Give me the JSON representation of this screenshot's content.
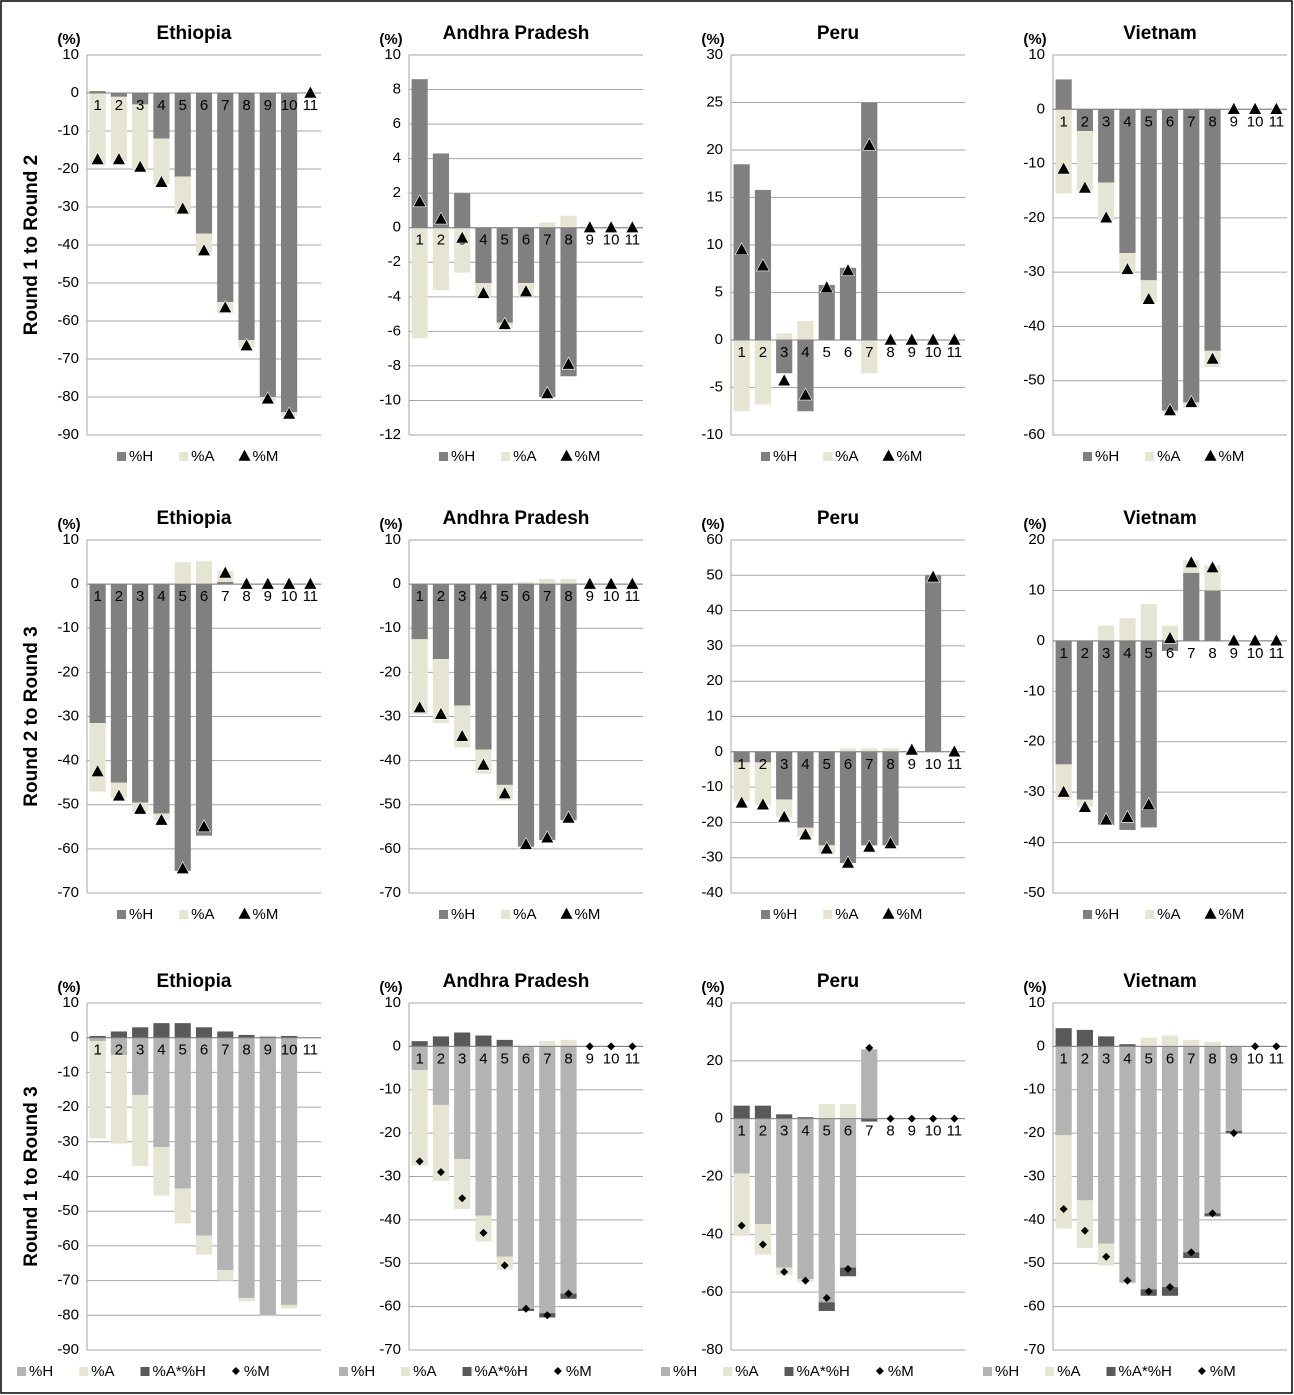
{
  "chart_data": [
    {
      "type": "bar",
      "title": "Ethiopia",
      "unit": "(%)",
      "ylabel": "Round 1 to Round 2",
      "ylim": [
        -90,
        10
      ],
      "yticks": [
        -90,
        -80,
        -70,
        -60,
        -50,
        -40,
        -30,
        -20,
        -10,
        0,
        10
      ],
      "grid": true,
      "categories": [
        "1",
        "2",
        "3",
        "4",
        "5",
        "6",
        "7",
        "8",
        "9",
        "10",
        "11"
      ],
      "series": [
        {
          "name": "%H",
          "color": "#808080",
          "values": [
            0.5,
            -1,
            -3,
            -12,
            -22,
            -37,
            -55,
            -65,
            -80,
            -84,
            0
          ]
        },
        {
          "name": "%A",
          "color": "#e6e5d3",
          "values": [
            -19,
            -17,
            -17,
            -12,
            -10,
            -5,
            -3,
            -2,
            -1,
            -1,
            0
          ]
        },
        {
          "name": "%M",
          "color": "#000000",
          "marker": "triangle",
          "values": [
            -17.5,
            -17.5,
            -19.5,
            -23.5,
            -30.5,
            -41.5,
            -56.5,
            -66.5,
            -80.5,
            -84.5,
            0
          ]
        }
      ]
    },
    {
      "type": "bar",
      "title": "Andhra Pradesh",
      "unit": "(%)",
      "ylim": [
        -12,
        10
      ],
      "yticks": [
        -12,
        -10,
        -8,
        -6,
        -4,
        -2,
        0,
        2,
        4,
        6,
        8,
        10
      ],
      "grid": true,
      "categories": [
        "1",
        "2",
        "3",
        "4",
        "5",
        "6",
        "7",
        "8",
        "9",
        "10",
        "11"
      ],
      "series": [
        {
          "name": "%H",
          "color": "#808080",
          "values": [
            8.6,
            4.3,
            2.0,
            -3.2,
            -5.5,
            -3.2,
            -9.8,
            -8.6,
            0,
            0,
            0
          ]
        },
        {
          "name": "%A",
          "color": "#e6e5d3",
          "values": [
            -6.4,
            -3.6,
            -2.6,
            -0.8,
            -0.3,
            -0.7,
            0.3,
            0.7,
            0,
            0,
            0
          ]
        },
        {
          "name": "%M",
          "color": "#000000",
          "marker": "triangle",
          "values": [
            1.5,
            0.5,
            -0.6,
            -3.8,
            -5.6,
            -3.7,
            -9.6,
            -7.9,
            0,
            0,
            0
          ]
        }
      ]
    },
    {
      "type": "bar",
      "title": "Peru",
      "unit": "(%)",
      "ylim": [
        -10,
        30
      ],
      "yticks": [
        -10,
        -5,
        0,
        5,
        10,
        15,
        20,
        25,
        30
      ],
      "grid": true,
      "categories": [
        "1",
        "2",
        "3",
        "4",
        "5",
        "6",
        "7",
        "8",
        "9",
        "10",
        "11"
      ],
      "series": [
        {
          "name": "%H",
          "color": "#808080",
          "values": [
            18.5,
            15.8,
            -3.5,
            -7.5,
            5.8,
            7.6,
            25,
            0,
            0,
            0,
            0
          ]
        },
        {
          "name": "%A",
          "color": "#e6e5d3",
          "values": [
            -7.5,
            -6.8,
            0.7,
            2.0,
            0,
            0,
            -3.5,
            0,
            0,
            0,
            0
          ]
        },
        {
          "name": "%M",
          "color": "#000000",
          "marker": "triangle",
          "values": [
            9.5,
            7.8,
            -4.3,
            -5.8,
            5.5,
            7.3,
            20.5,
            0,
            0,
            0,
            0
          ]
        }
      ]
    },
    {
      "type": "bar",
      "title": "Vietnam",
      "unit": "(%)",
      "ylim": [
        -60,
        10
      ],
      "yticks": [
        -60,
        -50,
        -40,
        -30,
        -20,
        -10,
        0,
        10
      ],
      "grid": true,
      "categories": [
        "1",
        "2",
        "3",
        "4",
        "5",
        "6",
        "7",
        "8",
        "9",
        "10",
        "11"
      ],
      "series": [
        {
          "name": "%H",
          "color": "#808080",
          "values": [
            5.5,
            -4,
            -13.5,
            -26.5,
            -31.5,
            -55.5,
            -54,
            -44.5,
            0,
            0,
            0
          ]
        },
        {
          "name": "%A",
          "color": "#e6e5d3",
          "values": [
            -15.5,
            -11,
            -7,
            -3.5,
            -4,
            -0.5,
            -1,
            -3,
            0,
            0,
            0
          ]
        },
        {
          "name": "%M",
          "color": "#000000",
          "marker": "triangle",
          "values": [
            -11,
            -14.5,
            -20,
            -29.5,
            -35,
            -55.5,
            -54,
            -46,
            0,
            0,
            0
          ]
        }
      ]
    },
    {
      "type": "bar",
      "title": "Ethiopia",
      "unit": "(%)",
      "ylabel": "Round 2 to Round 3",
      "ylim": [
        -70,
        10
      ],
      "yticks": [
        -70,
        -60,
        -50,
        -40,
        -30,
        -20,
        -10,
        0,
        10
      ],
      "grid": true,
      "categories": [
        "1",
        "2",
        "3",
        "4",
        "5",
        "6",
        "7",
        "8",
        "9",
        "10",
        "11"
      ],
      "series": [
        {
          "name": "%H",
          "color": "#808080",
          "values": [
            -31.5,
            -45,
            -49.5,
            -52,
            -65,
            -57,
            0.5,
            0,
            0,
            0,
            0
          ]
        },
        {
          "name": "%A",
          "color": "#e6e5d3",
          "values": [
            -15.5,
            -3.5,
            -2,
            -1.5,
            5,
            5.2,
            2.5,
            0,
            0,
            0,
            0
          ]
        },
        {
          "name": "%M",
          "color": "#000000",
          "marker": "triangle",
          "values": [
            -42.5,
            -48,
            -51,
            -53.5,
            -64.5,
            -55,
            2.5,
            0,
            0,
            0,
            0
          ]
        }
      ]
    },
    {
      "type": "bar",
      "title": "Andhra Pradesh",
      "unit": "(%)",
      "ylim": [
        -70,
        10
      ],
      "yticks": [
        -70,
        -60,
        -50,
        -40,
        -30,
        -20,
        -10,
        0,
        10
      ],
      "grid": true,
      "categories": [
        "1",
        "2",
        "3",
        "4",
        "5",
        "6",
        "7",
        "8",
        "9",
        "10",
        "11"
      ],
      "series": [
        {
          "name": "%H",
          "color": "#808080",
          "values": [
            -12.5,
            -17,
            -27.5,
            -37.5,
            -45.5,
            -59.5,
            -58,
            -53.5,
            0,
            0,
            0
          ]
        },
        {
          "name": "%A",
          "color": "#e6e5d3",
          "values": [
            -17,
            -14.5,
            -9.5,
            -5.5,
            -3.5,
            0.5,
            1.2,
            1.2,
            0,
            0,
            0
          ]
        },
        {
          "name": "%M",
          "color": "#000000",
          "marker": "triangle",
          "values": [
            -28,
            -29.5,
            -34.5,
            -41,
            -47.5,
            -59,
            -57.5,
            -53,
            0,
            0,
            0
          ]
        }
      ]
    },
    {
      "type": "bar",
      "title": "Peru",
      "unit": "(%)",
      "ylim": [
        -40,
        60
      ],
      "yticks": [
        -40,
        -30,
        -20,
        -10,
        0,
        10,
        20,
        30,
        40,
        50,
        60
      ],
      "grid": true,
      "categories": [
        "1",
        "2",
        "3",
        "4",
        "5",
        "6",
        "7",
        "8",
        "9",
        "10",
        "11"
      ],
      "series": [
        {
          "name": "%H",
          "color": "#808080",
          "values": [
            -3,
            -3,
            -13.5,
            -21.5,
            -26.5,
            -31.5,
            -26.5,
            -26.5,
            0,
            50,
            0
          ]
        },
        {
          "name": "%A",
          "color": "#e6e5d3",
          "values": [
            -11,
            -12,
            -5,
            -2.5,
            -2.5,
            1,
            1,
            1,
            0,
            0,
            0
          ]
        },
        {
          "name": "%M",
          "color": "#000000",
          "marker": "triangle",
          "values": [
            -14.5,
            -15,
            -18.5,
            -23.5,
            -27.5,
            -31.5,
            -27,
            -26,
            0.5,
            49.5,
            0
          ]
        }
      ]
    },
    {
      "type": "bar",
      "title": "Vietnam",
      "unit": "(%)",
      "ylim": [
        -50,
        20
      ],
      "yticks": [
        -50,
        -40,
        -30,
        -20,
        -10,
        0,
        10,
        20
      ],
      "grid": true,
      "categories": [
        "1",
        "2",
        "3",
        "4",
        "5",
        "6",
        "7",
        "8",
        "9",
        "10",
        "11"
      ],
      "series": [
        {
          "name": "%H",
          "color": "#808080",
          "values": [
            -24.5,
            -31.5,
            -36.5,
            -37.5,
            -37,
            -2,
            13.5,
            10,
            0,
            0,
            0
          ]
        },
        {
          "name": "%A",
          "color": "#e6e5d3",
          "values": [
            -7,
            -1.5,
            3,
            4.5,
            7.3,
            3,
            2.5,
            5,
            0,
            0,
            0
          ]
        },
        {
          "name": "%M",
          "color": "#000000",
          "marker": "triangle",
          "values": [
            -30,
            -33,
            -35.5,
            -35,
            -32.5,
            0.5,
            15.5,
            14.5,
            0,
            0,
            0
          ]
        }
      ]
    },
    {
      "type": "bar",
      "title": "Ethiopia",
      "unit": "(%)",
      "ylabel": "Round 1 to Round 3",
      "ylim": [
        -90,
        10
      ],
      "yticks": [
        -90,
        -80,
        -70,
        -60,
        -50,
        -40,
        -30,
        -20,
        -10,
        0,
        10
      ],
      "grid": true,
      "categories": [
        "1",
        "2",
        "3",
        "4",
        "5",
        "6",
        "7",
        "8",
        "9",
        "10",
        "11"
      ],
      "series": [
        {
          "name": "%H",
          "color": "#b3b3b3",
          "values": [
            -1,
            -5,
            -16.5,
            -31.5,
            -43.5,
            -57,
            -67,
            -75,
            -80,
            -77,
            0
          ]
        },
        {
          "name": "%A",
          "color": "#e6e5d3",
          "values": [
            -28,
            -25.5,
            -20.5,
            -14,
            -10,
            -5.5,
            -3,
            -1,
            -0.3,
            -1,
            0
          ]
        },
        {
          "name": "%A*%H",
          "color": "#595959",
          "values": [
            0.5,
            1.8,
            3,
            4.2,
            4.2,
            3,
            1.8,
            0.8,
            0.3,
            0.5,
            0
          ]
        },
        {
          "name": "%M",
          "color": "#000000",
          "marker": "diamond",
          "values": [
            null,
            null,
            null,
            null,
            null,
            null,
            null,
            null,
            null,
            null,
            null
          ]
        }
      ]
    },
    {
      "type": "bar",
      "title": "Andhra Pradesh",
      "unit": "(%)",
      "ylim": [
        -70,
        10
      ],
      "yticks": [
        -70,
        -60,
        -50,
        -40,
        -30,
        -20,
        -10,
        0,
        10
      ],
      "grid": true,
      "categories": [
        "1",
        "2",
        "3",
        "4",
        "5",
        "6",
        "7",
        "8",
        "9",
        "10",
        "11"
      ],
      "series": [
        {
          "name": "%H",
          "color": "#b3b3b3",
          "values": [
            -5.5,
            -13.5,
            -26,
            -39,
            -48.5,
            -60.5,
            -61.5,
            -57,
            0,
            0,
            0
          ]
        },
        {
          "name": "%A",
          "color": "#e6e5d3",
          "values": [
            -22,
            -17.5,
            -11.5,
            -6,
            -3,
            0,
            1.2,
            1.5,
            0,
            0,
            0
          ]
        },
        {
          "name": "%A*%H",
          "color": "#595959",
          "values": [
            1.2,
            2.3,
            3.2,
            2.5,
            1.5,
            -0.5,
            -1,
            -1.2,
            0,
            0,
            0
          ]
        },
        {
          "name": "%M",
          "color": "#000000",
          "marker": "diamond",
          "values": [
            -26.5,
            -29,
            -35,
            -43,
            -50.5,
            -60.5,
            -62,
            -57,
            0,
            0,
            0
          ]
        }
      ]
    },
    {
      "type": "bar",
      "title": "Peru",
      "unit": "(%)",
      "ylim": [
        -80,
        40
      ],
      "yticks": [
        -80,
        -60,
        -40,
        -20,
        0,
        20,
        40
      ],
      "grid": true,
      "categories": [
        "1",
        "2",
        "3",
        "4",
        "5",
        "6",
        "7",
        "8",
        "9",
        "10",
        "11"
      ],
      "series": [
        {
          "name": "%H",
          "color": "#b3b3b3",
          "values": [
            -19,
            -36.5,
            -51.5,
            -55.5,
            -63.5,
            -51.5,
            24,
            0,
            0,
            0,
            0
          ]
        },
        {
          "name": "%A",
          "color": "#e6e5d3",
          "values": [
            -21.5,
            -10.5,
            -2.5,
            -1,
            5,
            5,
            0,
            0,
            0,
            0,
            0
          ]
        },
        {
          "name": "%A*%H",
          "color": "#595959",
          "values": [
            4.5,
            4.5,
            1.5,
            0.5,
            -3,
            -3,
            -1,
            0,
            0,
            0,
            0
          ]
        },
        {
          "name": "%M",
          "color": "#000000",
          "marker": "diamond",
          "values": [
            -37,
            -43.5,
            -53,
            -56,
            -62,
            -52,
            24.5,
            0,
            0,
            0,
            0
          ]
        }
      ]
    },
    {
      "type": "bar",
      "title": "Vietnam",
      "unit": "(%)",
      "ylim": [
        -70,
        10
      ],
      "yticks": [
        -70,
        -60,
        -50,
        -40,
        -30,
        -20,
        -10,
        0,
        10
      ],
      "grid": true,
      "categories": [
        "1",
        "2",
        "3",
        "4",
        "5",
        "6",
        "7",
        "8",
        "9",
        "10",
        "11"
      ],
      "series": [
        {
          "name": "%H",
          "color": "#b3b3b3",
          "values": [
            -20.5,
            -35.5,
            -45.5,
            -54.5,
            -56,
            -55.5,
            -47.5,
            -38.5,
            -19.5,
            0,
            0
          ]
        },
        {
          "name": "%A",
          "color": "#e6e5d3",
          "values": [
            -21.5,
            -11,
            -5,
            0,
            2,
            2.5,
            1.5,
            1,
            0,
            0,
            0
          ]
        },
        {
          "name": "%A*%H",
          "color": "#595959",
          "values": [
            4.2,
            3.8,
            2.3,
            0.5,
            -1.5,
            -2,
            -1.3,
            -0.7,
            -0.5,
            0,
            0
          ]
        },
        {
          "name": "%M",
          "color": "#000000",
          "marker": "diamond",
          "values": [
            -37.5,
            -42.5,
            -48.5,
            -54,
            -56.5,
            -55.5,
            -47.5,
            -38.5,
            -20,
            0,
            0
          ]
        }
      ]
    }
  ]
}
